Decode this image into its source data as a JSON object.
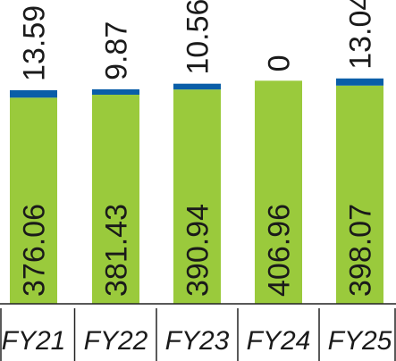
{
  "chart_data": {
    "type": "bar",
    "stacked": true,
    "categories": [
      "FY21",
      "FY22",
      "FY23",
      "FY24",
      "FY25"
    ],
    "series": [
      {
        "values": [
          376.06,
          381.43,
          390.94,
          406.96,
          398.07
        ],
        "color": "#9ACA3C"
      },
      {
        "values": [
          13.59,
          9.87,
          10.56,
          0,
          13.04
        ],
        "color": "#0A5EA8"
      }
    ],
    "labels": {
      "bottom": [
        "376.06",
        "381.43",
        "390.94",
        "406.96",
        "398.07"
      ],
      "top": [
        "13.59",
        "9.87",
        "10.56",
        "0",
        "13.04"
      ]
    },
    "title": "",
    "xlabel": "",
    "ylabel": "",
    "axis_color": "#222222",
    "grid": false,
    "legend": "none"
  }
}
